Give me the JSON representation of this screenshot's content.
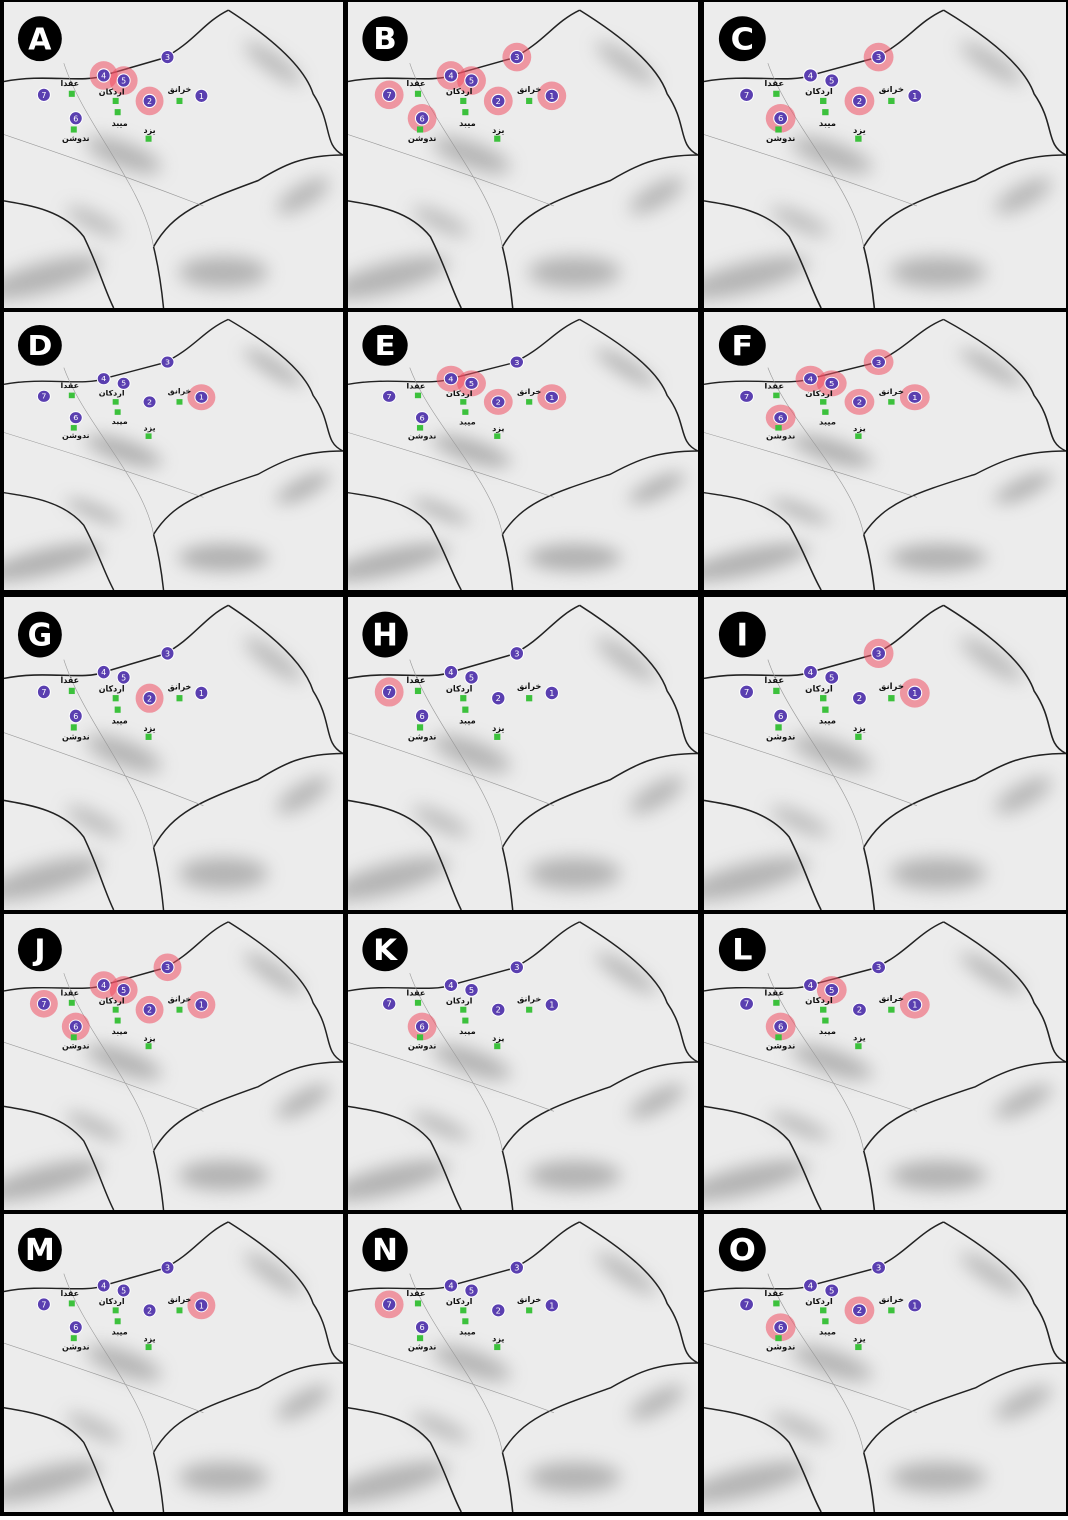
{
  "stations": [
    "1",
    "2",
    "3",
    "4",
    "5",
    "6",
    "7"
  ],
  "towns": [
    "عقدا",
    "اردکان",
    "میبد",
    "یزد",
    "خرانق",
    "ندوشن"
  ],
  "panels": [
    {
      "label": "A",
      "highlighted": [
        false,
        true,
        false,
        true,
        true,
        false,
        false
      ]
    },
    {
      "label": "B",
      "highlighted": [
        true,
        true,
        true,
        true,
        true,
        true,
        true
      ]
    },
    {
      "label": "C",
      "highlighted": [
        false,
        true,
        true,
        false,
        false,
        true,
        false
      ]
    },
    {
      "label": "D",
      "highlighted": [
        true,
        false,
        false,
        false,
        false,
        false,
        false
      ]
    },
    {
      "label": "E",
      "highlighted": [
        true,
        true,
        false,
        true,
        true,
        false,
        false
      ]
    },
    {
      "label": "F",
      "highlighted": [
        true,
        true,
        true,
        true,
        true,
        true,
        false
      ]
    },
    {
      "label": "G",
      "highlighted": [
        false,
        true,
        false,
        false,
        false,
        false,
        false
      ]
    },
    {
      "label": "H",
      "highlighted": [
        false,
        false,
        false,
        false,
        false,
        false,
        true
      ]
    },
    {
      "label": "I",
      "highlighted": [
        true,
        false,
        true,
        false,
        false,
        false,
        false
      ]
    },
    {
      "label": "J",
      "highlighted": [
        true,
        true,
        true,
        true,
        true,
        true,
        true
      ]
    },
    {
      "label": "K",
      "highlighted": [
        false,
        false,
        false,
        false,
        false,
        true,
        false
      ]
    },
    {
      "label": "L",
      "highlighted": [
        true,
        false,
        false,
        false,
        true,
        true,
        false
      ]
    },
    {
      "label": "M",
      "highlighted": [
        true,
        false,
        false,
        false,
        false,
        false,
        false
      ]
    },
    {
      "label": "N",
      "highlighted": [
        false,
        false,
        false,
        false,
        false,
        false,
        true
      ]
    },
    {
      "label": "O",
      "highlighted": [
        false,
        true,
        false,
        false,
        false,
        true,
        false
      ]
    }
  ]
}
